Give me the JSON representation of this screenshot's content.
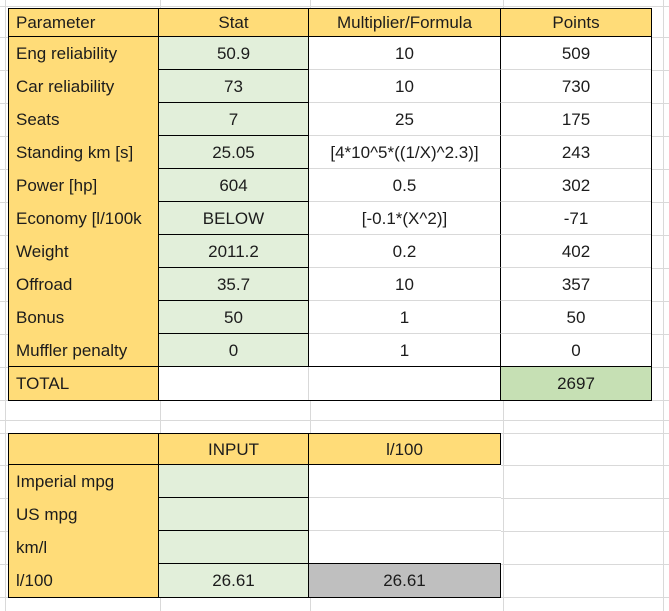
{
  "colors": {
    "header_fill": "#FFDC78",
    "stat_fill": "#E2EFDA",
    "total_fill": "#C6E0B4",
    "gray_fill": "#BFBFBF",
    "grid_line": "#D9D9D9",
    "border": "#000000"
  },
  "score_table": {
    "headers": [
      "Parameter",
      "Stat",
      "Multiplier/Formula",
      "Points"
    ],
    "rows": [
      {
        "param": "Eng reliability",
        "stat": "50.9",
        "formula": "10",
        "points": "509"
      },
      {
        "param": "Car reliability",
        "stat": "73",
        "formula": "10",
        "points": "730"
      },
      {
        "param": "Seats",
        "stat": "7",
        "formula": "25",
        "points": "175"
      },
      {
        "param": "Standing km [s]",
        "stat": "25.05",
        "formula": "[4*10^5*((1/X)^2.3)]",
        "points": "243"
      },
      {
        "param": "Power [hp]",
        "stat": "604",
        "formula": "0.5",
        "points": "302"
      },
      {
        "param": "Economy [l/100k",
        "stat": "BELOW",
        "formula": "[-0.1*(X^2)]",
        "points": "-71"
      },
      {
        "param": "Weight",
        "stat": "2011.2",
        "formula": "0.2",
        "points": "402"
      },
      {
        "param": "Offroad",
        "stat": "35.7",
        "formula": "10",
        "points": "357"
      },
      {
        "param": "Bonus",
        "stat": "50",
        "formula": "1",
        "points": "50"
      },
      {
        "param": "Muffler penalty",
        "stat": "0",
        "formula": "1",
        "points": "0"
      }
    ],
    "total_label": "TOTAL",
    "total_points": "2697"
  },
  "converter_table": {
    "headers": [
      "",
      "INPUT",
      "l/100"
    ],
    "rows": [
      {
        "label": "Imperial mpg",
        "input": "",
        "output": ""
      },
      {
        "label": "US mpg",
        "input": "",
        "output": ""
      },
      {
        "label": "km/l",
        "input": "",
        "output": ""
      },
      {
        "label": "l/100",
        "input": "26.61",
        "output": "26.61"
      }
    ]
  }
}
